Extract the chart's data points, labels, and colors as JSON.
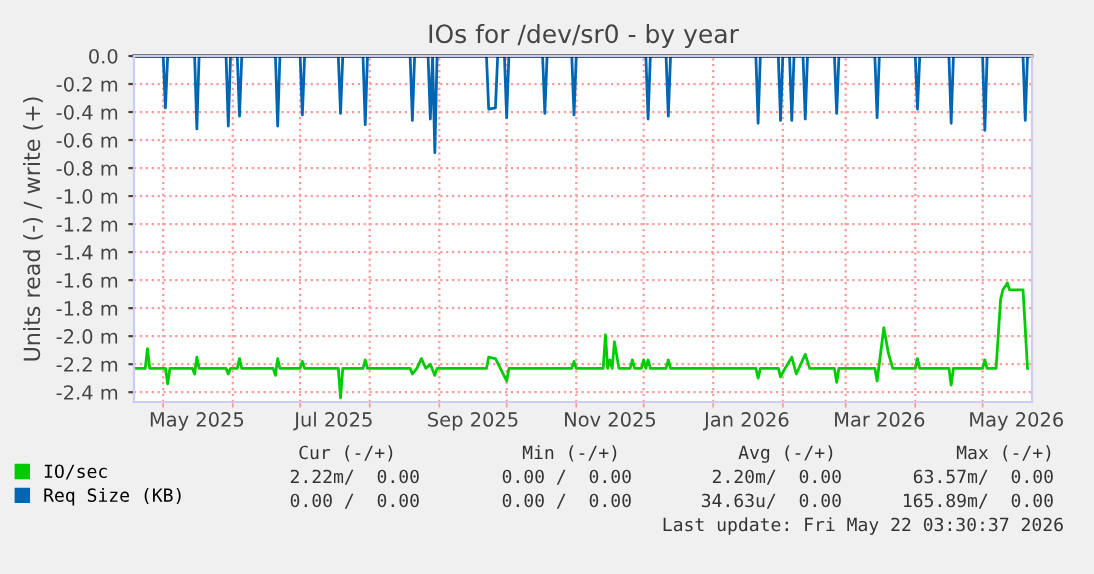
{
  "chart_data": {
    "type": "line",
    "title": "IOs for /dev/sr0 - by year",
    "ylabel": "Units read (-) / write (+)",
    "series": [
      {
        "name": "IO/sec",
        "color": "#00cc00",
        "x": [
          "2025-04-18",
          "2025-04-23",
          "2025-04-24",
          "2025-04-25",
          "2025-05-02",
          "2025-05-03",
          "2025-05-04",
          "2025-05-14",
          "2025-05-15",
          "2025-05-16",
          "2025-05-17",
          "2025-05-29",
          "2025-05-30",
          "2025-05-31",
          "2025-06-03",
          "2025-06-04",
          "2025-06-05",
          "2025-06-19",
          "2025-06-20",
          "2025-06-21",
          "2025-06-22",
          "2025-07-01",
          "2025-07-02",
          "2025-07-03",
          "2025-07-18",
          "2025-07-19",
          "2025-07-20",
          "2025-07-29",
          "2025-07-30",
          "2025-07-31",
          "2025-08-19",
          "2025-08-20",
          "2025-08-22",
          "2025-08-24",
          "2025-08-26",
          "2025-08-28",
          "2025-08-30",
          "2025-08-31",
          "2025-09-22",
          "2025-09-23",
          "2025-09-26",
          "2025-10-01",
          "2025-10-02",
          "2025-10-30",
          "2025-10-31",
          "2025-11-01",
          "2025-11-13",
          "2025-11-14",
          "2025-11-15",
          "2025-11-16",
          "2025-11-17",
          "2025-11-18",
          "2025-11-20",
          "2025-11-25",
          "2025-11-26",
          "2025-11-27",
          "2025-11-30",
          "2025-12-01",
          "2025-12-02",
          "2025-12-03",
          "2025-12-04",
          "2025-12-11",
          "2025-12-12",
          "2025-12-13",
          "2026-01-20",
          "2026-01-21",
          "2026-01-22",
          "2026-01-30",
          "2026-01-31",
          "2026-02-02",
          "2026-02-05",
          "2026-02-07",
          "2026-02-11",
          "2026-02-13",
          "2026-02-24",
          "2026-02-25",
          "2026-02-26",
          "2026-03-14",
          "2026-03-15",
          "2026-03-18",
          "2026-03-20",
          "2026-03-22",
          "2026-04-01",
          "2026-04-02",
          "2026-04-03",
          "2026-04-16",
          "2026-04-17",
          "2026-04-18",
          "2026-05-01",
          "2026-05-02",
          "2026-05-03",
          "2026-05-07",
          "2026-05-09",
          "2026-05-10",
          "2026-05-12",
          "2026-05-13",
          "2026-05-19",
          "2026-05-21"
        ],
        "values": [
          -2.23,
          -2.23,
          -2.09,
          -2.23,
          -2.23,
          -2.34,
          -2.23,
          -2.23,
          -2.27,
          -2.15,
          -2.23,
          -2.23,
          -2.27,
          -2.23,
          -2.23,
          -2.16,
          -2.23,
          -2.23,
          -2.28,
          -2.16,
          -2.23,
          -2.23,
          -2.18,
          -2.23,
          -2.23,
          -2.44,
          -2.23,
          -2.23,
          -2.17,
          -2.23,
          -2.23,
          -2.27,
          -2.23,
          -2.16,
          -2.23,
          -2.2,
          -2.28,
          -2.23,
          -2.23,
          -2.15,
          -2.16,
          -2.32,
          -2.23,
          -2.23,
          -2.18,
          -2.23,
          -2.23,
          -1.99,
          -2.23,
          -2.17,
          -2.23,
          -2.04,
          -2.23,
          -2.23,
          -2.17,
          -2.23,
          -2.23,
          -2.17,
          -2.23,
          -2.17,
          -2.23,
          -2.23,
          -2.17,
          -2.23,
          -2.23,
          -2.3,
          -2.23,
          -2.23,
          -2.29,
          -2.23,
          -2.15,
          -2.27,
          -2.13,
          -2.23,
          -2.23,
          -2.33,
          -2.23,
          -2.23,
          -2.32,
          -1.94,
          -2.12,
          -2.23,
          -2.23,
          -2.16,
          -2.23,
          -2.23,
          -2.35,
          -2.23,
          -2.23,
          -2.17,
          -2.23,
          -2.23,
          -1.74,
          -1.67,
          -1.62,
          -1.67,
          -1.67,
          -2.23
        ]
      },
      {
        "name": "Req Size (KB)",
        "color": "#0066b3",
        "x": [
          "2025-04-18",
          "2025-05-01",
          "2025-05-02",
          "2025-05-03",
          "2025-05-15",
          "2025-05-16",
          "2025-05-17",
          "2025-05-29",
          "2025-05-30",
          "2025-05-31",
          "2025-06-03",
          "2025-06-04",
          "2025-06-05",
          "2025-06-20",
          "2025-06-21",
          "2025-06-22",
          "2025-07-01",
          "2025-07-02",
          "2025-07-03",
          "2025-07-18",
          "2025-07-19",
          "2025-07-20",
          "2025-07-29",
          "2025-07-30",
          "2025-07-31",
          "2025-08-19",
          "2025-08-20",
          "2025-08-21",
          "2025-08-27",
          "2025-08-28",
          "2025-08-29",
          "2025-08-30",
          "2025-08-31",
          "2025-09-22",
          "2025-09-23",
          "2025-09-26",
          "2025-09-27",
          "2025-09-30",
          "2025-10-01",
          "2025-10-02",
          "2025-10-17",
          "2025-10-18",
          "2025-10-19",
          "2025-10-30",
          "2025-10-31",
          "2025-11-01",
          "2025-12-02",
          "2025-12-03",
          "2025-12-04",
          "2025-12-11",
          "2025-12-12",
          "2025-12-13",
          "2026-01-20",
          "2026-01-21",
          "2026-01-22",
          "2026-01-30",
          "2026-01-31",
          "2026-02-01",
          "2026-02-04",
          "2026-02-05",
          "2026-02-06",
          "2026-02-10",
          "2026-02-11",
          "2026-02-12",
          "2026-02-24",
          "2026-02-25",
          "2026-02-26",
          "2026-03-14",
          "2026-03-15",
          "2026-03-16",
          "2026-04-01",
          "2026-04-02",
          "2026-04-03",
          "2026-04-16",
          "2026-04-17",
          "2026-04-18",
          "2026-05-01",
          "2026-05-02",
          "2026-05-03",
          "2026-05-19",
          "2026-05-20",
          "2026-05-21"
        ],
        "values": [
          0,
          0,
          -0.37,
          0,
          0,
          -0.52,
          0,
          0,
          -0.5,
          0,
          0,
          -0.43,
          0,
          0,
          -0.5,
          0,
          0,
          -0.42,
          0,
          0,
          -0.41,
          0,
          0,
          -0.49,
          0,
          0,
          -0.46,
          0,
          0,
          -0.45,
          0,
          -0.69,
          0,
          0,
          -0.38,
          -0.37,
          0,
          0,
          -0.44,
          0,
          0,
          -0.41,
          0,
          0,
          -0.42,
          0,
          0,
          -0.45,
          0,
          0,
          -0.43,
          0,
          0,
          -0.48,
          0,
          0,
          -0.46,
          0,
          0,
          -0.46,
          0,
          0,
          -0.45,
          0,
          0,
          -0.41,
          0,
          0,
          -0.44,
          0,
          0,
          -0.38,
          0,
          0,
          -0.48,
          0,
          0,
          -0.53,
          0,
          0,
          -0.46,
          0
        ]
      }
    ],
    "xlim": [
      "2025-04-18",
      "2026-05-23"
    ],
    "xticks": [
      {
        "value": "2025-05-01",
        "label": null
      },
      {
        "value": "2025-05-16",
        "label": "May 2025"
      },
      {
        "value": "2025-06-01",
        "label": null
      },
      {
        "value": "2025-07-01",
        "label": null
      },
      {
        "value": "2025-07-16",
        "label": "Jul 2025"
      },
      {
        "value": "2025-08-01",
        "label": null
      },
      {
        "value": "2025-09-01",
        "label": null
      },
      {
        "value": "2025-09-16",
        "label": "Sep 2025"
      },
      {
        "value": "2025-10-01",
        "label": null
      },
      {
        "value": "2025-11-01",
        "label": null
      },
      {
        "value": "2025-11-16",
        "label": "Nov 2025"
      },
      {
        "value": "2025-12-01",
        "label": null
      },
      {
        "value": "2026-01-01",
        "label": null
      },
      {
        "value": "2026-01-16",
        "label": "Jan 2026"
      },
      {
        "value": "2026-02-01",
        "label": null
      },
      {
        "value": "2026-03-01",
        "label": null
      },
      {
        "value": "2026-03-16",
        "label": "Mar 2026"
      },
      {
        "value": "2026-04-01",
        "label": null
      },
      {
        "value": "2026-05-01",
        "label": null
      },
      {
        "value": "2026-05-16",
        "label": "May 2026"
      }
    ],
    "ylim": [
      -2.47,
      0
    ],
    "yticks": [
      {
        "value": -2.4,
        "label": "-2.4 m"
      },
      {
        "value": -2.2,
        "label": "-2.2 m"
      },
      {
        "value": -2.0,
        "label": "-2.0 m"
      },
      {
        "value": -1.8,
        "label": "-1.8 m"
      },
      {
        "value": -1.6,
        "label": "-1.6 m"
      },
      {
        "value": -1.4,
        "label": "-1.4 m"
      },
      {
        "value": -1.2,
        "label": "-1.2 m"
      },
      {
        "value": -1.0,
        "label": "-1.0 m"
      },
      {
        "value": -0.8,
        "label": "-0.8 m"
      },
      {
        "value": -0.6,
        "label": "-0.6 m"
      },
      {
        "value": -0.4,
        "label": "-0.4 m"
      },
      {
        "value": -0.2,
        "label": "-0.2 m"
      },
      {
        "value": 0,
        "label": "0.0"
      }
    ],
    "ref_lines": [
      {
        "axis": "y",
        "value": 0,
        "color": "#000000"
      }
    ],
    "grid": true,
    "legend": "bottom left",
    "marker": "none",
    "line_style": "solid",
    "annotations": [
      "Cur (-/+)",
      "Min (-/+)",
      "Avg (-/+)",
      "Max (-/+)",
      "2.22m/  0.00",
      "0.00 /  0.00",
      "2.20m/  0.00",
      "63.57m/  0.00",
      "0.00 /  0.00",
      "0.00 /  0.00",
      "34.63u/  0.00",
      "165.89m/  0.00",
      "Last update: Fri May 22 03:30:37 2026"
    ]
  }
}
